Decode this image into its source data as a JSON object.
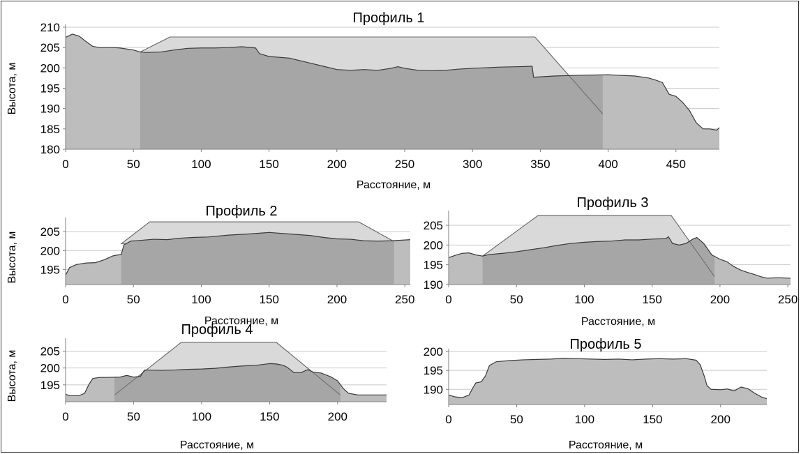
{
  "chart_data": [
    {
      "type": "area",
      "title": "Профиль 1",
      "xlabel": "Расстояние, м",
      "ylabel": "Высота, м",
      "xlim": [
        0,
        482
      ],
      "ylim": [
        180,
        210
      ],
      "xticks": [
        0,
        50,
        100,
        150,
        200,
        250,
        300,
        350,
        400,
        450
      ],
      "yticks": [
        180,
        185,
        190,
        195,
        200,
        205,
        210
      ],
      "grid": true,
      "series": [
        {
          "role": "terrain",
          "points": [
            [
              0,
              207.5
            ],
            [
              5,
              208.3
            ],
            [
              10,
              207.8
            ],
            [
              15,
              206.5
            ],
            [
              20,
              205.3
            ],
            [
              25,
              205
            ],
            [
              30,
              205
            ],
            [
              35,
              205
            ],
            [
              40,
              204.9
            ],
            [
              50,
              204.4
            ],
            [
              55,
              203.9
            ],
            [
              60,
              203.8
            ],
            [
              70,
              203.9
            ],
            [
              80,
              204.4
            ],
            [
              90,
              204.8
            ],
            [
              100,
              204.9
            ],
            [
              110,
              204.9
            ],
            [
              120,
              205
            ],
            [
              130,
              205.2
            ],
            [
              140,
              204.9
            ],
            [
              143,
              203.5
            ],
            [
              150,
              202.8
            ],
            [
              165,
              202.4
            ],
            [
              180,
              201.2
            ],
            [
              190,
              200.4
            ],
            [
              200,
              199.6
            ],
            [
              210,
              199.4
            ],
            [
              220,
              199.6
            ],
            [
              230,
              199.4
            ],
            [
              240,
              199.9
            ],
            [
              245,
              200.3
            ],
            [
              250,
              199.9
            ],
            [
              260,
              199.4
            ],
            [
              270,
              199.3
            ],
            [
              280,
              199.4
            ],
            [
              290,
              199.7
            ],
            [
              300,
              199.9
            ],
            [
              320,
              200.2
            ],
            [
              335,
              200.3
            ],
            [
              344,
              200.4
            ],
            [
              345,
              197.7
            ],
            [
              360,
              198
            ],
            [
              380,
              198.2
            ],
            [
              400,
              198.3
            ],
            [
              420,
              198
            ],
            [
              430,
              197.5
            ],
            [
              435,
              197
            ],
            [
              440,
              196.4
            ],
            [
              445,
              193.5
            ],
            [
              450,
              193
            ],
            [
              455,
              191.5
            ],
            [
              460,
              189.5
            ],
            [
              465,
              186.5
            ],
            [
              470,
              185
            ],
            [
              475,
              185
            ],
            [
              480,
              184.7
            ],
            [
              482,
              185.3
            ]
          ]
        },
        {
          "role": "design",
          "points": [
            [
              55,
              203.9
            ],
            [
              77,
              207.6
            ],
            [
              346,
              207.6
            ],
            [
              396,
              188.7
            ]
          ],
          "base_span": [
            55,
            396
          ]
        }
      ]
    },
    {
      "type": "area",
      "title": "Профиль 2",
      "xlabel": "Расстояние, м",
      "ylabel": "Высота, м",
      "xlim": [
        0,
        254
      ],
      "ylim": [
        191,
        208
      ],
      "xticks": [
        0,
        50,
        100,
        150,
        200,
        250
      ],
      "yticks": [
        195,
        200,
        205
      ],
      "grid": true,
      "series": [
        {
          "role": "terrain",
          "points": [
            [
              0,
              193.5
            ],
            [
              3,
              195.5
            ],
            [
              8,
              196.3
            ],
            [
              15,
              196.7
            ],
            [
              22,
              196.8
            ],
            [
              28,
              197.5
            ],
            [
              35,
              198.6
            ],
            [
              41,
              199
            ],
            [
              43,
              201.5
            ],
            [
              48,
              202.5
            ],
            [
              55,
              202.7
            ],
            [
              65,
              203
            ],
            [
              75,
              202.9
            ],
            [
              85,
              203.3
            ],
            [
              95,
              203.5
            ],
            [
              105,
              203.6
            ],
            [
              120,
              204.1
            ],
            [
              135,
              204.4
            ],
            [
              150,
              204.8
            ],
            [
              165,
              204.4
            ],
            [
              180,
              204
            ],
            [
              190,
              203.5
            ],
            [
              200,
              203.1
            ],
            [
              210,
              203
            ],
            [
              220,
              202.6
            ],
            [
              230,
              202.5
            ],
            [
              240,
              202.6
            ],
            [
              250,
              202.8
            ],
            [
              254,
              202.9
            ]
          ]
        },
        {
          "role": "design",
          "points": [
            [
              41,
              201.8
            ],
            [
              62,
              207.6
            ],
            [
              216,
              207.6
            ],
            [
              242,
              202.4
            ]
          ],
          "base_span": [
            41,
            242
          ]
        }
      ]
    },
    {
      "type": "area",
      "title": "Профиль 3",
      "xlabel": "Расстояние, м",
      "ylabel": "",
      "xlim": [
        0,
        252
      ],
      "ylim": [
        190,
        208
      ],
      "xticks": [
        0,
        50,
        100,
        150,
        200,
        250
      ],
      "yticks": [
        190,
        195,
        200,
        205
      ],
      "grid": true,
      "series": [
        {
          "role": "terrain",
          "points": [
            [
              0,
              196.8
            ],
            [
              5,
              197.4
            ],
            [
              10,
              197.9
            ],
            [
              15,
              198
            ],
            [
              20,
              197.5
            ],
            [
              25,
              197.2
            ],
            [
              30,
              197.6
            ],
            [
              40,
              197.9
            ],
            [
              50,
              198.3
            ],
            [
              60,
              198.8
            ],
            [
              70,
              199.3
            ],
            [
              80,
              199.9
            ],
            [
              90,
              200.4
            ],
            [
              100,
              200.7
            ],
            [
              110,
              200.9
            ],
            [
              120,
              201
            ],
            [
              130,
              201.3
            ],
            [
              140,
              201.3
            ],
            [
              150,
              201.5
            ],
            [
              160,
              201.6
            ],
            [
              162,
              202.1
            ],
            [
              165,
              200.4
            ],
            [
              170,
              200
            ],
            [
              175,
              200.4
            ],
            [
              180,
              201.5
            ],
            [
              183,
              201.9
            ],
            [
              188,
              200.4
            ],
            [
              194,
              197.5
            ],
            [
              200,
              196.4
            ],
            [
              205,
              195.8
            ],
            [
              210,
              194.6
            ],
            [
              215,
              193.7
            ],
            [
              220,
              193.1
            ],
            [
              225,
              192.6
            ],
            [
              230,
              192
            ],
            [
              235,
              191.6
            ],
            [
              240,
              191.7
            ],
            [
              245,
              191.7
            ],
            [
              252,
              191.6
            ]
          ]
        },
        {
          "role": "design",
          "points": [
            [
              25,
              197.2
            ],
            [
              66,
              207.5
            ],
            [
              164,
              207.5
            ],
            [
              196,
              192
            ]
          ],
          "base_span": [
            25,
            196
          ]
        }
      ]
    },
    {
      "type": "area",
      "title": "Профиль 4",
      "xlabel": "Расстояние, м",
      "ylabel": "Высота, м",
      "xlim": [
        0,
        236
      ],
      "ylim": [
        190,
        208
      ],
      "xticks": [
        0,
        50,
        100,
        150,
        200
      ],
      "yticks": [
        195,
        200,
        205
      ],
      "grid": true,
      "series": [
        {
          "role": "terrain",
          "points": [
            [
              0,
              192.2
            ],
            [
              3,
              191.8
            ],
            [
              10,
              191.8
            ],
            [
              14,
              192.5
            ],
            [
              17,
              195
            ],
            [
              20,
              196.9
            ],
            [
              25,
              197.2
            ],
            [
              30,
              197.2
            ],
            [
              40,
              197.3
            ],
            [
              45,
              197.8
            ],
            [
              50,
              197.3
            ],
            [
              55,
              197.5
            ],
            [
              58,
              199.4
            ],
            [
              70,
              199.3
            ],
            [
              80,
              199.4
            ],
            [
              90,
              199.6
            ],
            [
              100,
              199.7
            ],
            [
              110,
              199.9
            ],
            [
              120,
              200.3
            ],
            [
              130,
              200.6
            ],
            [
              140,
              200.8
            ],
            [
              150,
              201.3
            ],
            [
              155,
              201.2
            ],
            [
              160,
              200.8
            ],
            [
              163,
              200.2
            ],
            [
              168,
              198.6
            ],
            [
              173,
              198.6
            ],
            [
              178,
              199.5
            ],
            [
              182,
              198.8
            ],
            [
              188,
              198.5
            ],
            [
              195,
              197.4
            ],
            [
              200,
              196.2
            ],
            [
              204,
              194
            ],
            [
              208,
              192.5
            ],
            [
              215,
              192
            ],
            [
              225,
              192
            ],
            [
              236,
              192
            ]
          ]
        },
        {
          "role": "design",
          "points": [
            [
              36,
              192
            ],
            [
              85,
              207.6
            ],
            [
              155,
              207.6
            ],
            [
              202,
              192
            ]
          ],
          "base_span": [
            36,
            202
          ]
        }
      ]
    },
    {
      "type": "area",
      "title": "Профиль 5",
      "xlabel": "Расстояние, м",
      "ylabel": "",
      "xlim": [
        0,
        234
      ],
      "ylim": [
        186,
        200
      ],
      "xticks": [
        0,
        50,
        100,
        150,
        200
      ],
      "yticks": [
        190,
        195,
        200
      ],
      "grid": true,
      "series": [
        {
          "role": "terrain",
          "points": [
            [
              0,
              188.5
            ],
            [
              5,
              188
            ],
            [
              10,
              187.8
            ],
            [
              15,
              188.5
            ],
            [
              18,
              190.5
            ],
            [
              20,
              191.7
            ],
            [
              24,
              192
            ],
            [
              27,
              193.5
            ],
            [
              30,
              196.3
            ],
            [
              35,
              197.3
            ],
            [
              45,
              197.6
            ],
            [
              55,
              197.8
            ],
            [
              65,
              197.9
            ],
            [
              75,
              198
            ],
            [
              85,
              198.2
            ],
            [
              95,
              198.1
            ],
            [
              105,
              198
            ],
            [
              115,
              197.9
            ],
            [
              125,
              198
            ],
            [
              135,
              197.8
            ],
            [
              145,
              198
            ],
            [
              155,
              198.1
            ],
            [
              165,
              198
            ],
            [
              175,
              198.1
            ],
            [
              182,
              197.7
            ],
            [
              185,
              196.5
            ],
            [
              188,
              193.5
            ],
            [
              190,
              191
            ],
            [
              193,
              190
            ],
            [
              200,
              189.9
            ],
            [
              205,
              190.1
            ],
            [
              210,
              189.6
            ],
            [
              215,
              190.6
            ],
            [
              220,
              190.2
            ],
            [
              225,
              189
            ],
            [
              230,
              188
            ],
            [
              234,
              187.5
            ]
          ]
        }
      ]
    }
  ]
}
